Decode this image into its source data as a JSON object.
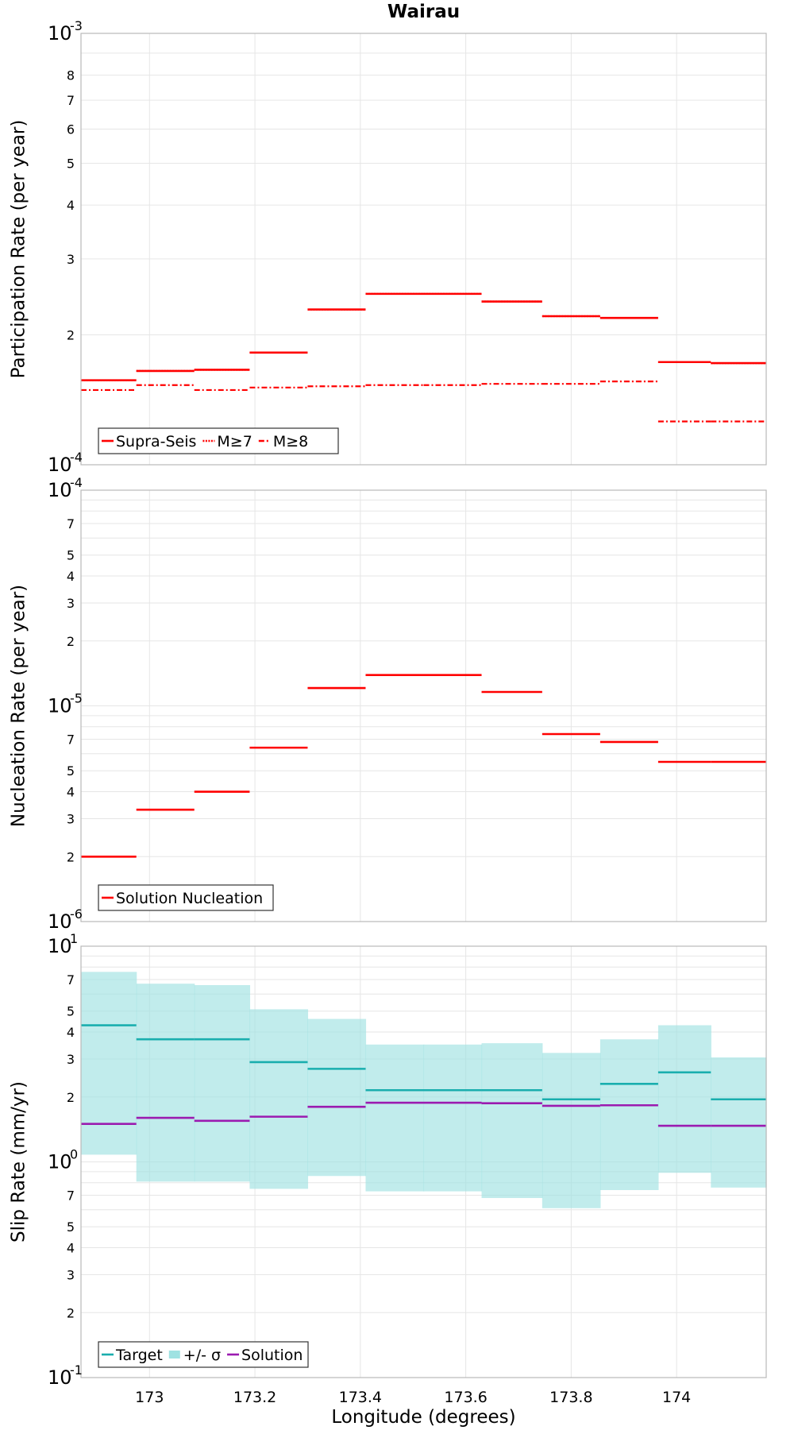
{
  "chart_data": [
    {
      "type": "line",
      "title": "Wairau",
      "ylabel": "Participation Rate (per year)",
      "yscale": "log",
      "ylim": [
        0.0001,
        0.001
      ],
      "xlim": [
        172.87,
        174.17
      ],
      "grid": true,
      "legend": "bottom-left",
      "y_tick_minor_labels": [
        "2",
        "3",
        "4",
        "5",
        "6",
        "7",
        "8"
      ],
      "y_tick_decades": [
        {
          "base": "10",
          "exp": "-4"
        },
        {
          "base": "10",
          "exp": "-3"
        }
      ],
      "segments_x": [
        [
          172.87,
          172.975
        ],
        [
          172.975,
          173.085
        ],
        [
          173.085,
          173.19
        ],
        [
          173.19,
          173.3
        ],
        [
          173.3,
          173.41
        ],
        [
          173.41,
          173.52
        ],
        [
          173.52,
          173.63
        ],
        [
          173.63,
          173.745
        ],
        [
          173.745,
          173.855
        ],
        [
          173.855,
          173.965
        ],
        [
          173.965,
          174.065
        ],
        [
          174.065,
          174.17
        ]
      ],
      "series": [
        {
          "name": "Supra-Seis",
          "style": "solid",
          "color": "#ff0000",
          "values": [
            0.000157,
            0.000165,
            0.000166,
            0.000182,
            0.000229,
            0.000249,
            0.000249,
            0.000239,
            0.000221,
            0.000219,
            0.000173,
            0.000172
          ]
        },
        {
          "name": "M≥7",
          "style": "dotted",
          "color": "#ff0000",
          "values": [
            0.000157,
            0.000165,
            0.000166,
            0.000182,
            0.000229,
            0.000249,
            0.000249,
            0.000239,
            0.000221,
            0.000219,
            0.000173,
            0.000172
          ]
        },
        {
          "name": "M≥8",
          "style": "dashdot",
          "color": "#ff0000",
          "values": [
            0.000149,
            0.000153,
            0.000149,
            0.000151,
            0.000152,
            0.000153,
            0.000153,
            0.000154,
            0.000154,
            0.000156,
            0.000126,
            0.000126
          ]
        }
      ]
    },
    {
      "type": "line",
      "ylabel": "Nucleation Rate (per year)",
      "yscale": "log",
      "ylim": [
        1e-06,
        0.0001
      ],
      "xlim": [
        172.87,
        174.17
      ],
      "grid": true,
      "legend": "bottom-left",
      "y_tick_minor_labels": [
        "2",
        "3",
        "4",
        "5",
        "7"
      ],
      "y_tick_decades": [
        {
          "base": "10",
          "exp": "-6"
        },
        {
          "base": "10",
          "exp": "-5"
        },
        {
          "base": "10",
          "exp": "-4"
        }
      ],
      "segments_x": [
        [
          172.87,
          172.975
        ],
        [
          172.975,
          173.085
        ],
        [
          173.085,
          173.19
        ],
        [
          173.19,
          173.3
        ],
        [
          173.3,
          173.41
        ],
        [
          173.41,
          173.52
        ],
        [
          173.52,
          173.63
        ],
        [
          173.63,
          173.745
        ],
        [
          173.745,
          173.855
        ],
        [
          173.855,
          173.965
        ],
        [
          173.965,
          174.065
        ],
        [
          174.065,
          174.17
        ]
      ],
      "series": [
        {
          "name": "Solution Nucleation",
          "style": "solid",
          "color": "#ff0000",
          "values": [
            2e-06,
            3.3e-06,
            4e-06,
            6.4e-06,
            1.21e-05,
            1.39e-05,
            1.39e-05,
            1.16e-05,
            7.4e-06,
            6.8e-06,
            5.5e-06,
            5.5e-06
          ]
        }
      ]
    },
    {
      "type": "line",
      "ylabel": "Slip Rate (mm/yr)",
      "xlabel": "Longitude (degrees)",
      "yscale": "log",
      "ylim": [
        0.1,
        10
      ],
      "xlim": [
        172.87,
        174.17
      ],
      "x_ticks": [
        {
          "v": 173,
          "label": "173"
        },
        {
          "v": 173.2,
          "label": "173.2"
        },
        {
          "v": 173.4,
          "label": "173.4"
        },
        {
          "v": 173.6,
          "label": "173.6"
        },
        {
          "v": 173.8,
          "label": "173.8"
        },
        {
          "v": 174,
          "label": "174"
        }
      ],
      "grid": true,
      "legend": "bottom-left",
      "y_tick_minor_labels": [
        "2",
        "3",
        "4",
        "5",
        "7"
      ],
      "y_tick_decades": [
        {
          "base": "10",
          "exp": "-1"
        },
        {
          "base": "10",
          "exp": "0"
        },
        {
          "base": "10",
          "exp": "1"
        }
      ],
      "segments_x": [
        [
          172.87,
          172.975
        ],
        [
          172.975,
          173.085
        ],
        [
          173.085,
          173.19
        ],
        [
          173.19,
          173.3
        ],
        [
          173.3,
          173.41
        ],
        [
          173.41,
          173.52
        ],
        [
          173.52,
          173.63
        ],
        [
          173.63,
          173.745
        ],
        [
          173.745,
          173.855
        ],
        [
          173.855,
          173.965
        ],
        [
          173.965,
          174.065
        ],
        [
          174.065,
          174.17
        ]
      ],
      "band": {
        "name": "+/- σ",
        "color": "#9fe2e2",
        "lower": [
          1.08,
          0.81,
          0.81,
          0.75,
          0.86,
          0.73,
          0.73,
          0.68,
          0.61,
          0.74,
          0.89,
          0.76
        ],
        "upper": [
          7.6,
          6.7,
          6.6,
          5.1,
          4.6,
          3.5,
          3.5,
          3.55,
          3.2,
          3.7,
          4.3,
          3.05
        ]
      },
      "series": [
        {
          "name": "Target",
          "style": "solid",
          "color": "#1aaeae",
          "values": [
            4.3,
            3.7,
            3.7,
            2.9,
            2.7,
            2.15,
            2.15,
            2.15,
            1.95,
            2.3,
            2.6,
            1.95
          ]
        },
        {
          "name": "Solution",
          "style": "solid",
          "color": "#9b1bb0",
          "values": [
            1.5,
            1.6,
            1.55,
            1.62,
            1.8,
            1.88,
            1.88,
            1.87,
            1.82,
            1.83,
            1.47,
            1.47
          ]
        }
      ]
    }
  ]
}
